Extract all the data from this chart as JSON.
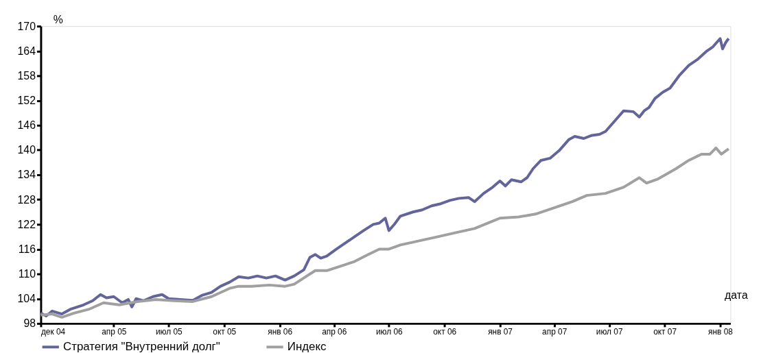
{
  "chart_data": {
    "type": "line",
    "xlabel": "дата",
    "ylabel": "%",
    "xlim": [
      "2004-12-01",
      "2008-01-18"
    ],
    "xticks": [
      {
        "value": "2004-12-01",
        "label": "дек 04"
      },
      {
        "value": "2005-04-01",
        "label": "апр 05"
      },
      {
        "value": "2005-07-01",
        "label": "июл 05"
      },
      {
        "value": "2005-10-01",
        "label": "окт 05"
      },
      {
        "value": "2006-01-01",
        "label": "янв 06"
      },
      {
        "value": "2006-04-01",
        "label": "апр 06"
      },
      {
        "value": "2006-07-01",
        "label": "июл 06"
      },
      {
        "value": "2006-10-01",
        "label": "окт 06"
      },
      {
        "value": "2007-01-01",
        "label": "янв 07"
      },
      {
        "value": "2007-04-01",
        "label": "апр 07"
      },
      {
        "value": "2007-07-01",
        "label": "июл 07"
      },
      {
        "value": "2007-10-01",
        "label": "окт 07"
      },
      {
        "value": "2008-01-01",
        "label": "янв 08"
      }
    ],
    "ylim": [
      98,
      170
    ],
    "yticks": [
      98,
      104,
      110,
      116,
      122,
      128,
      134,
      140,
      146,
      152,
      158,
      164,
      170
    ],
    "grid": false,
    "legend": "bottom",
    "marker": "none",
    "line_style": "solid",
    "series": [
      {
        "name": "Стратегия \"Внутренний долг\"",
        "color": "#62649a",
        "x": [
          "2004-12-01",
          "2004-12-10",
          "2004-12-20",
          "2005-01-05",
          "2005-01-20",
          "2005-02-10",
          "2005-02-25",
          "2005-03-10",
          "2005-03-20",
          "2005-04-01",
          "2005-04-15",
          "2005-04-25",
          "2005-05-01",
          "2005-05-08",
          "2005-05-20",
          "2005-06-05",
          "2005-06-20",
          "2005-07-01",
          "2005-07-20",
          "2005-08-10",
          "2005-08-25",
          "2005-09-10",
          "2005-09-25",
          "2005-10-10",
          "2005-10-25",
          "2005-11-10",
          "2005-11-25",
          "2005-12-10",
          "2005-12-25",
          "2006-01-10",
          "2006-01-25",
          "2006-02-10",
          "2006-02-20",
          "2006-03-01",
          "2006-03-10",
          "2006-03-20",
          "2006-04-05",
          "2006-04-20",
          "2006-05-05",
          "2006-05-20",
          "2006-06-05",
          "2006-06-15",
          "2006-06-25",
          "2006-07-01",
          "2006-07-10",
          "2006-07-20",
          "2006-08-10",
          "2006-08-25",
          "2006-09-10",
          "2006-09-25",
          "2006-10-10",
          "2006-10-25",
          "2006-11-10",
          "2006-11-20",
          "2006-12-05",
          "2006-12-20",
          "2007-01-01",
          "2007-01-10",
          "2007-01-20",
          "2007-02-05",
          "2007-02-15",
          "2007-02-25",
          "2007-03-10",
          "2007-03-25",
          "2007-04-10",
          "2007-04-25",
          "2007-05-05",
          "2007-05-20",
          "2007-06-01",
          "2007-06-15",
          "2007-06-25",
          "2007-07-10",
          "2007-07-25",
          "2007-08-10",
          "2007-08-20",
          "2007-08-28",
          "2007-09-05",
          "2007-09-15",
          "2007-09-28",
          "2007-10-10",
          "2007-10-25",
          "2007-11-10",
          "2007-11-25",
          "2007-12-10",
          "2007-12-20",
          "2008-01-01",
          "2008-01-05",
          "2008-01-10",
          "2008-01-15"
        ],
        "values": [
          100.5,
          99.8,
          101.0,
          100.3,
          101.5,
          102.5,
          103.5,
          105.0,
          104.2,
          104.5,
          103.0,
          103.8,
          102.0,
          104.0,
          103.5,
          104.5,
          105.0,
          104.0,
          103.8,
          103.6,
          104.8,
          105.5,
          107.0,
          108.0,
          109.3,
          109.0,
          109.5,
          109.0,
          109.5,
          108.5,
          109.5,
          111.0,
          114.0,
          114.7,
          113.8,
          114.3,
          116.0,
          117.5,
          119.0,
          120.5,
          122.0,
          122.3,
          123.5,
          120.5,
          122.0,
          124.0,
          125.0,
          125.5,
          126.5,
          127.0,
          127.8,
          128.3,
          128.5,
          127.5,
          129.5,
          131.0,
          132.5,
          131.3,
          132.8,
          132.3,
          133.3,
          135.5,
          137.5,
          138.0,
          140.0,
          142.5,
          143.3,
          142.8,
          143.5,
          143.8,
          144.5,
          147.0,
          149.5,
          149.3,
          148.0,
          149.5,
          150.3,
          152.5,
          154.0,
          155.0,
          158.0,
          160.5,
          162.0,
          164.0,
          165.0,
          167.0,
          164.5,
          166.0,
          167.0
        ]
      },
      {
        "name": "Индекс",
        "color": "#a0a0a0",
        "x": [
          "2004-12-01",
          "2004-12-20",
          "2005-01-05",
          "2005-01-25",
          "2005-02-20",
          "2005-03-15",
          "2005-04-10",
          "2005-05-10",
          "2005-06-10",
          "2005-07-10",
          "2005-08-10",
          "2005-09-10",
          "2005-10-10",
          "2005-10-25",
          "2005-11-15",
          "2005-12-15",
          "2006-01-10",
          "2006-01-25",
          "2006-02-15",
          "2006-03-01",
          "2006-03-20",
          "2006-04-10",
          "2006-05-05",
          "2006-05-25",
          "2006-06-15",
          "2006-07-01",
          "2006-07-20",
          "2006-08-20",
          "2006-09-20",
          "2006-10-20",
          "2006-11-20",
          "2006-12-15",
          "2007-01-01",
          "2007-02-01",
          "2007-03-01",
          "2007-04-01",
          "2007-05-01",
          "2007-05-25",
          "2007-06-25",
          "2007-07-25",
          "2007-08-20",
          "2007-09-01",
          "2007-09-20",
          "2007-10-20",
          "2007-11-10",
          "2007-12-01",
          "2007-12-15",
          "2007-12-25",
          "2008-01-03",
          "2008-01-15"
        ],
        "values": [
          100.0,
          100.3,
          99.5,
          100.5,
          101.5,
          103.0,
          102.5,
          103.3,
          103.8,
          103.5,
          103.3,
          104.5,
          106.5,
          107.0,
          107.0,
          107.3,
          107.0,
          107.5,
          109.5,
          110.8,
          110.8,
          111.8,
          113.0,
          114.5,
          116.0,
          116.0,
          117.0,
          118.0,
          119.0,
          120.0,
          121.0,
          122.5,
          123.5,
          123.8,
          124.5,
          126.0,
          127.5,
          129.0,
          129.5,
          131.0,
          133.3,
          132.0,
          133.0,
          135.5,
          137.5,
          139.0,
          139.0,
          140.5,
          139.0,
          140.3
        ]
      }
    ]
  }
}
